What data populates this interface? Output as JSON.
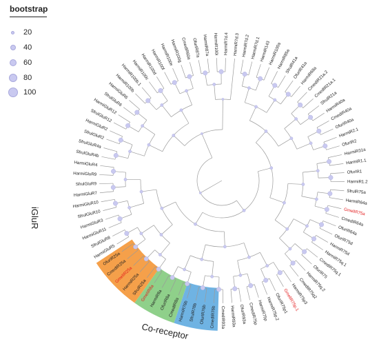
{
  "legend": {
    "title": "bootstrap",
    "items": [
      {
        "label": "20",
        "value": 20
      },
      {
        "label": "40",
        "value": 40
      },
      {
        "label": "60",
        "value": 60
      },
      {
        "label": "80",
        "value": 80
      },
      {
        "label": "100",
        "value": 100
      }
    ]
  },
  "groups": {
    "iglur": "iGluR",
    "coreceptor": "Co-receptor"
  },
  "colors": {
    "node": "#c9c9f0",
    "branch": "#9a9a9a",
    "highlight_text": "#e31a1c",
    "sector_orange": "#f5a04a",
    "sector_green": "#8fd08a",
    "sector_blue": "#6fb3e3"
  },
  "leaves": [
    "HarmiR7d.2",
    "HarmiR7d.1",
    "HarmiR143",
    "HarmiR100a",
    "HarmiR85a",
    "SfrulR41a",
    "OfurIR41a",
    "HarmiR68a",
    "CmedIR21a.2",
    "CmedIR21a.1",
    "SfrulR21a",
    "HarmiR40a",
    "CmedIR40a",
    "OfurIR40a",
    "HarmiR2.1",
    "OfurIR2",
    "HarmiR31a",
    "HarmiR1.1",
    "OfurIR1",
    "HarmiR1.2",
    "SfrulR75a",
    "HarmiR64a",
    "GmelIR75a",
    "CmedIR64a",
    "OfurIR64a",
    "OfurIR75d",
    "HarmiR75d",
    "HarmiR75q.1",
    "CmedIR75q.1",
    "OfurIR75",
    "HarmiR75q.2",
    "CmedIR75q2",
    "HarmiR75p3",
    "GmelIR75p.1",
    "OfurIR75p1",
    "HarmiR75p.2",
    "HarmiR75p",
    "CmedIR75p",
    "OfurIR93a",
    "HarmiR93a",
    "CmedIR93a",
    "CmedIR76b",
    "OfurIR76b",
    "SfrulR76b",
    "HarmiR76b",
    "CmedIR8a",
    "OfurIR8a",
    "HarmiR8a",
    "GmelIR8a",
    "SfrulR25a",
    "HarmiR25a",
    "GmelIR25a",
    "CmedIR25a",
    "OfurIR25a",
    "HarmiGluR5",
    "SfrulGluR8",
    "HarmiGluR11",
    "HarmiGluR3",
    "SfrulGluR10",
    "HarmiGluR10",
    "HarmiGluR7",
    "SfrulGluR9",
    "HarmiGluR9",
    "HarmiGluR4",
    "SfrulGluR4b",
    "SfrulGluR4a",
    "SfrulGluR2",
    "HarmiGluR2",
    "SfrulGluR12",
    "HarmiGluR12",
    "SfrulGluR6",
    "HarmiGluR6",
    "HarmiR100b",
    "HarmiR100b.1",
    "HarmiR100c",
    "HarmiR100d",
    "HarmiR100f",
    "HarmiR100e",
    "HarmiR100g",
    "CmedIR60a",
    "OfurIR87a",
    "HarmiR87a",
    "HarmiR100i",
    "HarmiR7d.4",
    "HarmiR7d.3"
  ],
  "highlighted": [
    "GmelIR75a",
    "GmelIR75p.1",
    "GmelIR8a",
    "GmelIR25a"
  ]
}
